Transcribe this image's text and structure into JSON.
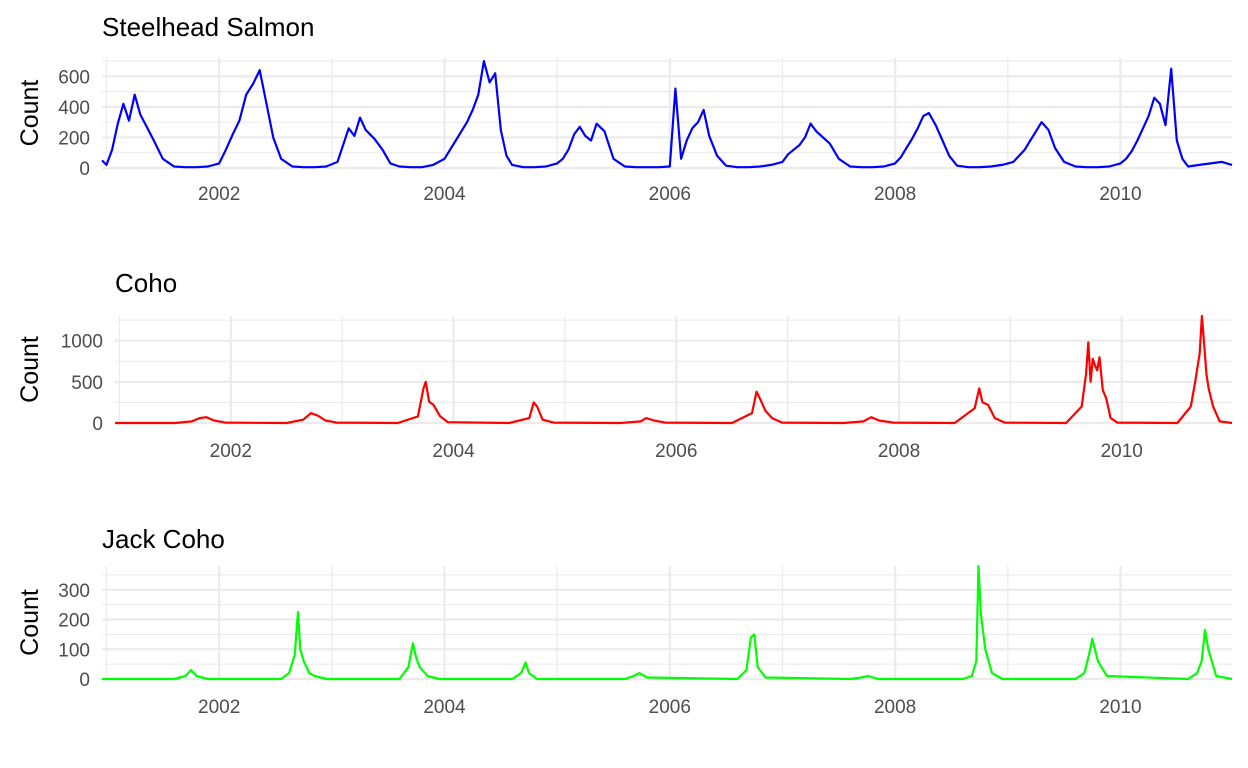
{
  "chart_data": [
    {
      "type": "line",
      "title": "Steelhead Salmon",
      "ylabel": "Count",
      "xlabel": "",
      "color": "#0000ff",
      "x_range": [
        2000.96,
        2010.99
      ],
      "ylim": [
        0,
        720
      ],
      "y_ticks": [
        0,
        200,
        400,
        600
      ],
      "x_ticks": [
        2002,
        2004,
        2006,
        2008,
        2010
      ],
      "grid": true,
      "series": [
        {
          "x": [
            2000.96,
            2001.0,
            2001.05,
            2001.1,
            2001.15,
            2001.2,
            2001.25,
            2001.3,
            2001.35,
            2001.42,
            2001.5,
            2001.6,
            2001.7,
            2001.8,
            2001.9,
            2002.0,
            2002.06,
            2002.12,
            2002.18,
            2002.24,
            2002.3,
            2002.36,
            2002.42,
            2002.48,
            2002.55,
            2002.65,
            2002.75,
            2002.85,
            2002.95,
            2003.05,
            2003.1,
            2003.15,
            2003.2,
            2003.25,
            2003.3,
            2003.38,
            2003.45,
            2003.52,
            2003.6,
            2003.7,
            2003.8,
            2003.9,
            2004.0,
            2004.05,
            2004.1,
            2004.15,
            2004.2,
            2004.25,
            2004.3,
            2004.35,
            2004.4,
            2004.45,
            2004.5,
            2004.55,
            2004.6,
            2004.7,
            2004.8,
            2004.9,
            2005.0,
            2005.05,
            2005.1,
            2005.15,
            2005.2,
            2005.25,
            2005.3,
            2005.35,
            2005.42,
            2005.5,
            2005.6,
            2005.7,
            2005.8,
            2005.9,
            2006.0,
            2006.05,
            2006.1,
            2006.15,
            2006.2,
            2006.25,
            2006.3,
            2006.35,
            2006.42,
            2006.5,
            2006.6,
            2006.7,
            2006.8,
            2006.9,
            2007.0,
            2007.05,
            2007.1,
            2007.15,
            2007.2,
            2007.25,
            2007.3,
            2007.36,
            2007.42,
            2007.5,
            2007.6,
            2007.7,
            2007.8,
            2007.9,
            2008.0,
            2008.05,
            2008.1,
            2008.15,
            2008.2,
            2008.25,
            2008.3,
            2008.36,
            2008.42,
            2008.48,
            2008.55,
            2008.65,
            2008.75,
            2008.85,
            2008.95,
            2009.05,
            2009.1,
            2009.15,
            2009.2,
            2009.25,
            2009.3,
            2009.36,
            2009.42,
            2009.5,
            2009.6,
            2009.7,
            2009.8,
            2009.9,
            2010.0,
            2010.05,
            2010.1,
            2010.15,
            2010.2,
            2010.25,
            2010.3,
            2010.35,
            2010.4,
            2010.45,
            2010.5,
            2010.55,
            2010.6,
            2010.7,
            2010.8,
            2010.9,
            2010.99
          ],
          "y": [
            50,
            20,
            120,
            290,
            420,
            310,
            480,
            350,
            280,
            180,
            60,
            10,
            5,
            5,
            10,
            30,
            120,
            220,
            310,
            480,
            550,
            640,
            420,
            200,
            60,
            10,
            5,
            5,
            10,
            40,
            150,
            260,
            210,
            330,
            250,
            190,
            120,
            30,
            10,
            5,
            5,
            20,
            60,
            120,
            180,
            240,
            300,
            380,
            480,
            700,
            560,
            620,
            250,
            80,
            20,
            5,
            5,
            10,
            30,
            60,
            120,
            220,
            270,
            210,
            180,
            290,
            240,
            60,
            10,
            5,
            5,
            5,
            10,
            520,
            60,
            180,
            260,
            300,
            380,
            210,
            80,
            15,
            5,
            5,
            10,
            20,
            40,
            90,
            120,
            150,
            200,
            290,
            240,
            200,
            160,
            60,
            10,
            5,
            5,
            10,
            30,
            70,
            130,
            190,
            260,
            340,
            360,
            280,
            180,
            80,
            15,
            5,
            5,
            10,
            20,
            40,
            80,
            120,
            180,
            240,
            300,
            250,
            130,
            40,
            10,
            5,
            5,
            10,
            30,
            60,
            110,
            180,
            260,
            340,
            460,
            420,
            280,
            650,
            180,
            60,
            10,
            20,
            30,
            40,
            20
          ]
        }
      ]
    },
    {
      "type": "line",
      "title": "Coho",
      "ylabel": "Count",
      "xlabel": "",
      "color": "#ff0000",
      "x_range": [
        2000.96,
        2010.99
      ],
      "ylim": [
        0,
        1300
      ],
      "y_ticks": [
        0,
        500,
        1000
      ],
      "x_ticks": [
        2002,
        2004,
        2006,
        2008,
        2010
      ],
      "grid": true,
      "series": [
        {
          "x": [
            2000.96,
            2001.5,
            2001.65,
            2001.72,
            2001.78,
            2001.85,
            2001.95,
            2002.5,
            2002.65,
            2002.72,
            2002.78,
            2002.85,
            2002.95,
            2003.5,
            2003.68,
            2003.73,
            2003.75,
            2003.78,
            2003.82,
            2003.88,
            2003.95,
            2004.5,
            2004.68,
            2004.72,
            2004.75,
            2004.8,
            2004.9,
            2005.5,
            2005.68,
            2005.73,
            2005.8,
            2005.9,
            2006.5,
            2006.68,
            2006.72,
            2006.75,
            2006.8,
            2006.86,
            2006.95,
            2007.5,
            2007.68,
            2007.75,
            2007.82,
            2007.95,
            2008.5,
            2008.68,
            2008.72,
            2008.75,
            2008.8,
            2008.86,
            2008.95,
            2009.5,
            2009.64,
            2009.68,
            2009.7,
            2009.72,
            2009.74,
            2009.76,
            2009.78,
            2009.8,
            2009.83,
            2009.86,
            2009.9,
            2009.96,
            2010.5,
            2010.62,
            2010.66,
            2010.7,
            2010.72,
            2010.74,
            2010.76,
            2010.78,
            2010.82,
            2010.88,
            2010.99
          ],
          "y": [
            0,
            0,
            20,
            60,
            70,
            30,
            5,
            0,
            40,
            120,
            90,
            30,
            5,
            0,
            80,
            420,
            500,
            260,
            220,
            80,
            10,
            0,
            60,
            250,
            200,
            40,
            5,
            0,
            20,
            60,
            30,
            5,
            0,
            120,
            380,
            300,
            150,
            60,
            5,
            0,
            20,
            70,
            30,
            5,
            0,
            180,
            420,
            250,
            220,
            60,
            5,
            0,
            200,
            600,
            980,
            500,
            780,
            700,
            640,
            800,
            400,
            300,
            60,
            5,
            0,
            200,
            500,
            850,
            1300,
            950,
            600,
            420,
            200,
            20,
            0
          ]
        }
      ]
    },
    {
      "type": "line",
      "title": "Jack Coho",
      "ylabel": "Count",
      "xlabel": "",
      "color": "#00ff00",
      "x_range": [
        2000.96,
        2010.99
      ],
      "ylim": [
        0,
        380
      ],
      "y_ticks": [
        0,
        100,
        200,
        300
      ],
      "x_ticks": [
        2002,
        2004,
        2006,
        2008,
        2010
      ],
      "grid": true,
      "series": [
        {
          "x": [
            2000.96,
            2001.6,
            2001.7,
            2001.75,
            2001.8,
            2001.9,
            2002.55,
            2002.62,
            2002.67,
            2002.7,
            2002.72,
            2002.75,
            2002.8,
            2002.85,
            2002.95,
            2003.6,
            2003.68,
            2003.72,
            2003.75,
            2003.78,
            2003.85,
            2003.95,
            2004.6,
            2004.68,
            2004.72,
            2004.75,
            2004.82,
            2005.6,
            2005.68,
            2005.73,
            2005.8,
            2006.6,
            2006.68,
            2006.72,
            2006.75,
            2006.78,
            2006.85,
            2007.6,
            2007.7,
            2007.76,
            2007.85,
            2008.6,
            2008.68,
            2008.72,
            2008.74,
            2008.76,
            2008.8,
            2008.86,
            2008.95,
            2009.6,
            2009.68,
            2009.72,
            2009.75,
            2009.8,
            2009.88,
            2010.6,
            2010.68,
            2010.72,
            2010.75,
            2010.78,
            2010.85,
            2010.99
          ],
          "y": [
            0,
            0,
            10,
            30,
            10,
            0,
            0,
            20,
            80,
            225,
            100,
            60,
            20,
            10,
            0,
            0,
            40,
            120,
            70,
            40,
            10,
            0,
            0,
            20,
            55,
            20,
            0,
            0,
            10,
            20,
            5,
            0,
            30,
            140,
            150,
            40,
            5,
            0,
            5,
            10,
            0,
            0,
            10,
            60,
            380,
            220,
            100,
            20,
            0,
            0,
            20,
            80,
            135,
            60,
            10,
            0,
            20,
            60,
            165,
            100,
            10,
            0
          ]
        }
      ]
    }
  ]
}
